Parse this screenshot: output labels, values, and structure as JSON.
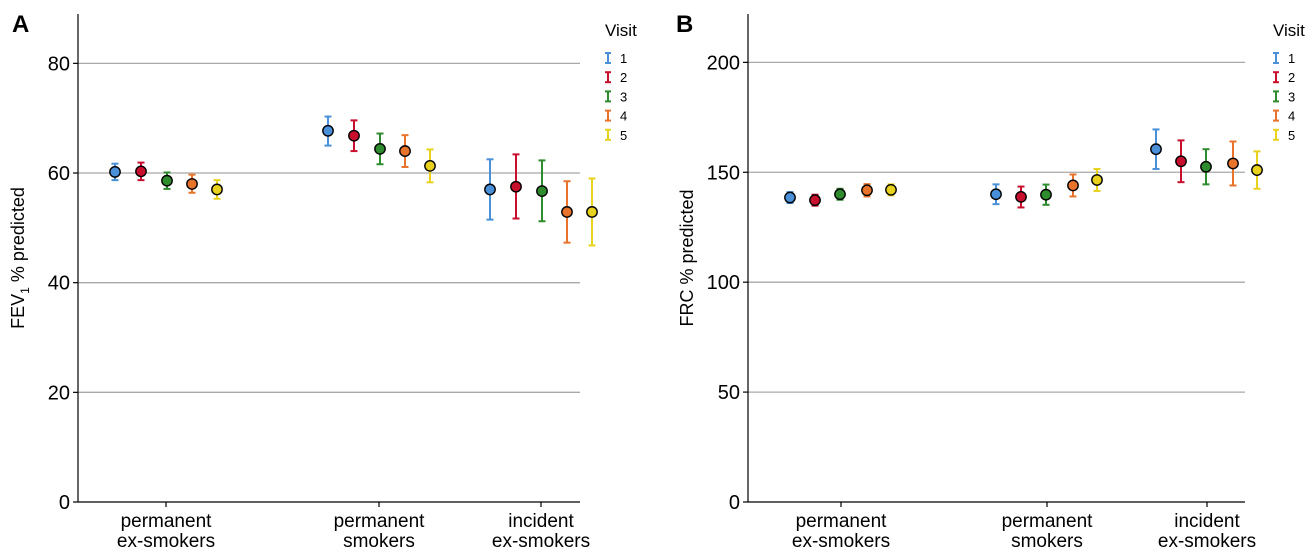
{
  "chart_data": [
    {
      "panel_label": "A",
      "type": "scatter",
      "subtype": "dot-with-error-bars",
      "ylabel_main": "FEV",
      "ylabel_sub": "1",
      "ylabel_rest": " % predicted",
      "xlabel": "",
      "ylim": [
        0,
        89
      ],
      "yticks": [
        0,
        20,
        40,
        60,
        80
      ],
      "grid": "horizontal",
      "categories": [
        [
          "permanent",
          "ex-smokers"
        ],
        [
          "permanent",
          "smokers"
        ],
        [
          "incident",
          "ex-smokers"
        ]
      ],
      "legend_title": "Visit",
      "legend_position": "top-right",
      "series": [
        {
          "name": "1",
          "color": "#4a90d9",
          "values": [
            60.2,
            67.7,
            57.0
          ],
          "lower": [
            58.7,
            65.0,
            51.5
          ],
          "upper": [
            61.7,
            70.3,
            62.5
          ]
        },
        {
          "name": "2",
          "color": "#c8102e",
          "values": [
            60.3,
            66.8,
            57.5
          ],
          "lower": [
            58.7,
            64.0,
            51.7
          ],
          "upper": [
            61.9,
            69.6,
            63.4
          ]
        },
        {
          "name": "3",
          "color": "#2e8b2e",
          "values": [
            58.6,
            64.4,
            56.7
          ],
          "lower": [
            57.1,
            61.6,
            51.2
          ],
          "upper": [
            60.1,
            67.2,
            62.3
          ]
        },
        {
          "name": "4",
          "color": "#e8732a",
          "values": [
            58.0,
            64.0,
            52.9
          ],
          "lower": [
            56.4,
            61.1,
            47.3
          ],
          "upper": [
            59.7,
            66.9,
            58.5
          ]
        },
        {
          "name": "5",
          "color": "#e8d21d",
          "values": [
            57.0,
            61.3,
            52.9
          ],
          "lower": [
            55.3,
            58.3,
            46.8
          ],
          "upper": [
            58.7,
            64.3,
            59.0
          ]
        }
      ]
    },
    {
      "panel_label": "B",
      "type": "scatter",
      "subtype": "dot-with-error-bars",
      "ylabel_main": "FRC % predicted",
      "ylabel_sub": "",
      "ylabel_rest": "",
      "xlabel": "",
      "ylim": [
        0,
        222
      ],
      "yticks": [
        0,
        50,
        100,
        150,
        200
      ],
      "grid": "horizontal",
      "categories": [
        [
          "permanent",
          "ex-smokers"
        ],
        [
          "permanent",
          "smokers"
        ],
        [
          "incident",
          "ex-smokers"
        ]
      ],
      "legend_title": "Visit",
      "legend_position": "top-right",
      "series": [
        {
          "name": "1",
          "color": "#4a90d9",
          "values": [
            138.5,
            140.0,
            160.5
          ],
          "lower": [
            136.0,
            135.5,
            151.5
          ],
          "upper": [
            141.0,
            144.5,
            169.5
          ]
        },
        {
          "name": "2",
          "color": "#c8102e",
          "values": [
            137.3,
            138.8,
            155.0
          ],
          "lower": [
            134.8,
            134.0,
            145.5
          ],
          "upper": [
            139.8,
            143.5,
            164.5
          ]
        },
        {
          "name": "3",
          "color": "#2e8b2e",
          "values": [
            140.0,
            139.8,
            152.5
          ],
          "lower": [
            137.5,
            135.2,
            144.5
          ],
          "upper": [
            142.5,
            144.4,
            160.5
          ]
        },
        {
          "name": "4",
          "color": "#e8732a",
          "values": [
            141.8,
            144.0,
            154.0
          ],
          "lower": [
            139.0,
            139.0,
            144.0
          ],
          "upper": [
            144.6,
            149.0,
            164.0
          ]
        },
        {
          "name": "5",
          "color": "#e8d21d",
          "values": [
            142.0,
            146.5,
            151.0
          ],
          "lower": [
            139.5,
            141.5,
            142.5
          ],
          "upper": [
            144.5,
            151.5,
            159.5
          ]
        }
      ]
    }
  ]
}
